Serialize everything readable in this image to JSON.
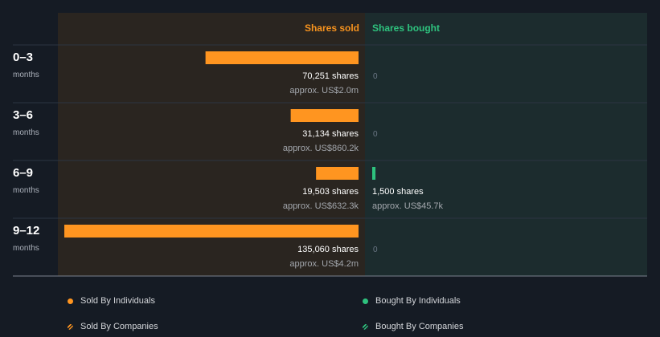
{
  "colors": {
    "background": "#151b24",
    "sold_panel": "#2a2520",
    "bought_panel": "#1c2c2e",
    "sold_bar": "#ff9520",
    "bought_bar": "#2ec27e",
    "sold_header": "#f7931e",
    "bought_header": "#2ec27e"
  },
  "chart_data": {
    "type": "bar",
    "orientation": "horizontal-diverging",
    "columns": {
      "sold": "Shares sold",
      "bought": "Shares bought"
    },
    "categories": [
      {
        "label": "0–3",
        "sublabel": "months"
      },
      {
        "label": "3–6",
        "sublabel": "months"
      },
      {
        "label": "6–9",
        "sublabel": "months"
      },
      {
        "label": "9–12",
        "sublabel": "months"
      }
    ],
    "series": [
      {
        "name": "Shares sold",
        "values": [
          70251,
          31134,
          19503,
          135060
        ],
        "labels": [
          "70,251 shares",
          "31,134 shares",
          "19,503 shares",
          "135,060 shares"
        ],
        "approx": [
          "approx. US$2.0m",
          "approx. US$860.2k",
          "approx. US$632.3k",
          "approx. US$4.2m"
        ]
      },
      {
        "name": "Shares bought",
        "values": [
          0,
          0,
          1500,
          0
        ],
        "labels": [
          "0",
          "0",
          "1,500 shares",
          "0"
        ],
        "approx": [
          "",
          "",
          "approx. US$45.7k",
          ""
        ]
      }
    ],
    "legend": [
      {
        "label": "Sold By Individuals",
        "style": "solid-orange"
      },
      {
        "label": "Bought By Individuals",
        "style": "solid-green"
      },
      {
        "label": "Sold By Companies",
        "style": "hatched-orange"
      },
      {
        "label": "Bought By Companies",
        "style": "hatched-green"
      }
    ],
    "legend_position": "bottom"
  }
}
